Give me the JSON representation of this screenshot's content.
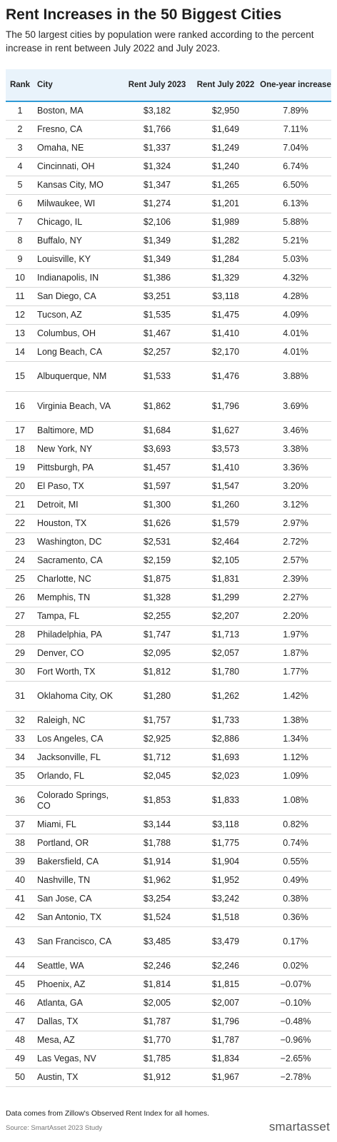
{
  "title": "Rent Increases in the 50 Biggest Cities",
  "subtitle": "The 50 largest cities by population were ranked according to the percent increase in rent between July 2022 and July 2023.",
  "footnote": "Data comes from Zillow's Observed Rent Index for all homes.",
  "source": "Source: SmartAsset 2023 Study",
  "brand": "smartasset",
  "colors": {
    "header_bg": "#e9f3fb",
    "header_rule": "#2f9bd6",
    "row_rule": "#d7d7d7"
  },
  "chart_data": {
    "type": "table",
    "columns": [
      "Rank",
      "City",
      "Rent July 2023",
      "Rent July 2022",
      "One-year increase"
    ],
    "rows": [
      [
        "1",
        "Boston, MA",
        "$3,182",
        "$2,950",
        "7.89%"
      ],
      [
        "2",
        "Fresno, CA",
        "$1,766",
        "$1,649",
        "7.11%"
      ],
      [
        "3",
        "Omaha, NE",
        "$1,337",
        "$1,249",
        "7.04%"
      ],
      [
        "4",
        "Cincinnati, OH",
        "$1,324",
        "$1,240",
        "6.74%"
      ],
      [
        "5",
        "Kansas City, MO",
        "$1,347",
        "$1,265",
        "6.50%"
      ],
      [
        "6",
        "Milwaukee, WI",
        "$1,274",
        "$1,201",
        "6.13%"
      ],
      [
        "7",
        "Chicago, IL",
        "$2,106",
        "$1,989",
        "5.88%"
      ],
      [
        "8",
        "Buffalo, NY",
        "$1,349",
        "$1,282",
        "5.21%"
      ],
      [
        "9",
        "Louisville, KY",
        "$1,349",
        "$1,284",
        "5.03%"
      ],
      [
        "10",
        "Indianapolis, IN",
        "$1,386",
        "$1,329",
        "4.32%"
      ],
      [
        "11",
        "San Diego, CA",
        "$3,251",
        "$3,118",
        "4.28%"
      ],
      [
        "12",
        "Tucson, AZ",
        "$1,535",
        "$1,475",
        "4.09%"
      ],
      [
        "13",
        "Columbus, OH",
        "$1,467",
        "$1,410",
        "4.01%"
      ],
      [
        "14",
        "Long Beach, CA",
        "$2,257",
        "$2,170",
        "4.01%"
      ],
      [
        "15",
        "Albuquerque, NM",
        "$1,533",
        "$1,476",
        "3.88%"
      ],
      [
        "16",
        "Virginia Beach, VA",
        "$1,862",
        "$1,796",
        "3.69%"
      ],
      [
        "17",
        "Baltimore, MD",
        "$1,684",
        "$1,627",
        "3.46%"
      ],
      [
        "18",
        "New York, NY",
        "$3,693",
        "$3,573",
        "3.38%"
      ],
      [
        "19",
        "Pittsburgh, PA",
        "$1,457",
        "$1,410",
        "3.36%"
      ],
      [
        "20",
        "El Paso, TX",
        "$1,597",
        "$1,547",
        "3.20%"
      ],
      [
        "21",
        "Detroit, MI",
        "$1,300",
        "$1,260",
        "3.12%"
      ],
      [
        "22",
        "Houston, TX",
        "$1,626",
        "$1,579",
        "2.97%"
      ],
      [
        "23",
        "Washington, DC",
        "$2,531",
        "$2,464",
        "2.72%"
      ],
      [
        "24",
        "Sacramento, CA",
        "$2,159",
        "$2,105",
        "2.57%"
      ],
      [
        "25",
        "Charlotte, NC",
        "$1,875",
        "$1,831",
        "2.39%"
      ],
      [
        "26",
        "Memphis, TN",
        "$1,328",
        "$1,299",
        "2.27%"
      ],
      [
        "27",
        "Tampa, FL",
        "$2,255",
        "$2,207",
        "2.20%"
      ],
      [
        "28",
        "Philadelphia, PA",
        "$1,747",
        "$1,713",
        "1.97%"
      ],
      [
        "29",
        "Denver, CO",
        "$2,095",
        "$2,057",
        "1.87%"
      ],
      [
        "30",
        "Fort Worth, TX",
        "$1,812",
        "$1,780",
        "1.77%"
      ],
      [
        "31",
        "Oklahoma City, OK",
        "$1,280",
        "$1,262",
        "1.42%"
      ],
      [
        "32",
        "Raleigh, NC",
        "$1,757",
        "$1,733",
        "1.38%"
      ],
      [
        "33",
        "Los Angeles, CA",
        "$2,925",
        "$2,886",
        "1.34%"
      ],
      [
        "34",
        "Jacksonville, FL",
        "$1,712",
        "$1,693",
        "1.12%"
      ],
      [
        "35",
        "Orlando, FL",
        "$2,045",
        "$2,023",
        "1.09%"
      ],
      [
        "36",
        "Colorado Springs, CO",
        "$1,853",
        "$1,833",
        "1.08%"
      ],
      [
        "37",
        "Miami, FL",
        "$3,144",
        "$3,118",
        "0.82%"
      ],
      [
        "38",
        "Portland, OR",
        "$1,788",
        "$1,775",
        "0.74%"
      ],
      [
        "39",
        "Bakersfield, CA",
        "$1,914",
        "$1,904",
        "0.55%"
      ],
      [
        "40",
        "Nashville, TN",
        "$1,962",
        "$1,952",
        "0.49%"
      ],
      [
        "41",
        "San Jose, CA",
        "$3,254",
        "$3,242",
        "0.38%"
      ],
      [
        "42",
        "San Antonio, TX",
        "$1,524",
        "$1,518",
        "0.36%"
      ],
      [
        "43",
        "San Francisco, CA",
        "$3,485",
        "$3,479",
        "0.17%"
      ],
      [
        "44",
        "Seattle, WA",
        "$2,246",
        "$2,246",
        "0.02%"
      ],
      [
        "45",
        "Phoenix, AZ",
        "$1,814",
        "$1,815",
        "−0.07%"
      ],
      [
        "46",
        "Atlanta, GA",
        "$2,005",
        "$2,007",
        "−0.10%"
      ],
      [
        "47",
        "Dallas, TX",
        "$1,787",
        "$1,796",
        "−0.48%"
      ],
      [
        "48",
        "Mesa, AZ",
        "$1,770",
        "$1,787",
        "−0.96%"
      ],
      [
        "49",
        "Las Vegas, NV",
        "$1,785",
        "$1,834",
        "−2.65%"
      ],
      [
        "50",
        "Austin, TX",
        "$1,912",
        "$1,967",
        "−2.78%"
      ]
    ]
  }
}
